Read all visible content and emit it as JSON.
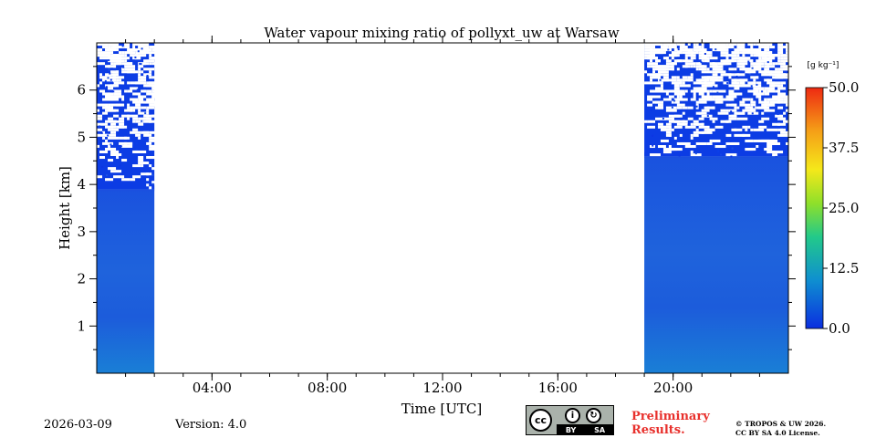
{
  "chart_data": {
    "type": "heatmap",
    "title": "Water vapour mixing ratio of pollyxt_uw at Warsaw",
    "xlabel": "Time [UTC]",
    "ylabel": "Height [km]",
    "xlim_hours": [
      0,
      24
    ],
    "ylim_km": [
      0,
      7.0
    ],
    "x_ticks": [
      {
        "value": 4,
        "label": "04:00"
      },
      {
        "value": 8,
        "label": "08:00"
      },
      {
        "value": 12,
        "label": "12:00"
      },
      {
        "value": 16,
        "label": "16:00"
      },
      {
        "value": 20,
        "label": "20:00"
      }
    ],
    "y_ticks": [
      {
        "value": 1,
        "label": "1"
      },
      {
        "value": 2,
        "label": "2"
      },
      {
        "value": 3,
        "label": "3"
      },
      {
        "value": 4,
        "label": "4"
      },
      {
        "value": 5,
        "label": "5"
      },
      {
        "value": 6,
        "label": "6"
      }
    ],
    "colorbar": {
      "label": "[g kg⁻¹]",
      "range": [
        0.0,
        50.0
      ],
      "ticks": [
        "0.0",
        "12.5",
        "25.0",
        "37.5",
        "50.0"
      ],
      "colors": [
        "#0b2ee0",
        "#0f8fd0",
        "#22c98a",
        "#8fe02a",
        "#f5e81a",
        "#f59f17",
        "#ee2a12"
      ]
    },
    "segments": [
      {
        "start_hour": 0.0,
        "end_hour": 2.0,
        "solid_top_km": 3.9,
        "patchy_top_km": 7.0,
        "typical_value": 2.0
      },
      {
        "start_hour": 19.0,
        "end_hour": 24.0,
        "solid_top_km": 4.6,
        "patchy_top_km": 7.0,
        "typical_value": 2.5
      }
    ]
  },
  "footer": {
    "date": "2026-03-09",
    "version": "Version: 4.0",
    "license_badge": {
      "cc": "cc",
      "by": "BY",
      "sa": "SA"
    },
    "preliminary_line1": "Preliminary",
    "preliminary_line2": "Results.",
    "copyright_line1": "© TROPOS & UW 2026.",
    "copyright_line2": "CC BY SA 4.0 License."
  }
}
